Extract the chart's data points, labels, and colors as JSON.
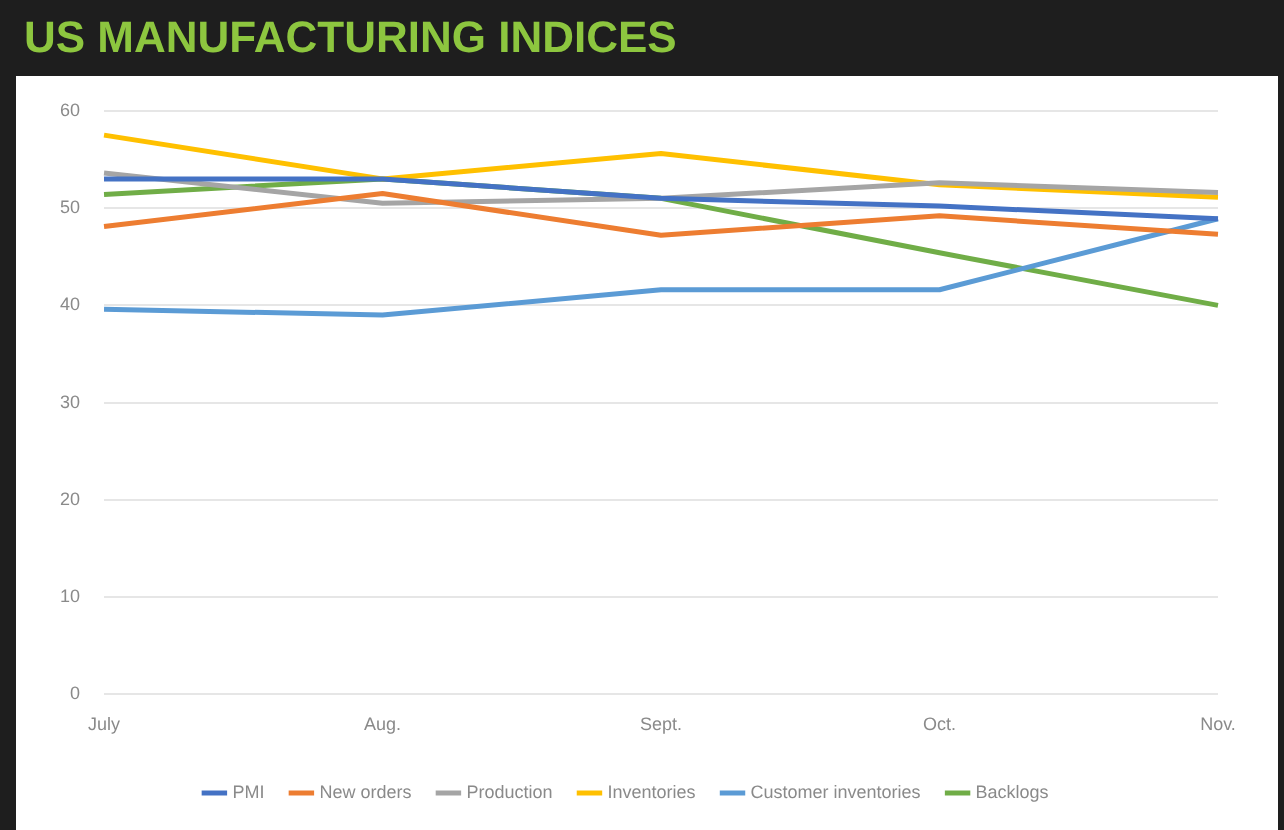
{
  "chart_data": {
    "type": "line",
    "title": "US MANUFACTURING INDICES",
    "categories": [
      "July",
      "Aug.",
      "Sept.",
      "Oct.",
      "Nov."
    ],
    "series": [
      {
        "name": "PMI",
        "color": "#4472c4",
        "values": [
          53,
          53,
          51,
          50.2,
          48.9
        ]
      },
      {
        "name": "New orders",
        "color": "#ed7d31",
        "values": [
          48.1,
          51.5,
          47.2,
          49.2,
          47.3
        ]
      },
      {
        "name": "Production",
        "color": "#a5a5a5",
        "values": [
          53.6,
          50.5,
          51,
          52.6,
          51.6
        ]
      },
      {
        "name": "Inventories",
        "color": "#ffc000",
        "values": [
          57.5,
          53,
          55.6,
          52.4,
          51.1
        ]
      },
      {
        "name": "Customer inventories",
        "color": "#5b9bd5",
        "values": [
          39.6,
          39,
          41.6,
          41.6,
          48.9
        ]
      },
      {
        "name": "Backlogs",
        "color": "#70ad47",
        "values": [
          51.4,
          53,
          51,
          45.4,
          40
        ]
      }
    ],
    "ylim": [
      0,
      60
    ],
    "yticks": [
      0,
      10,
      20,
      30,
      40,
      50,
      60
    ],
    "grid": "y",
    "legend": "bottom",
    "marker": "none",
    "line_style": "solid"
  }
}
